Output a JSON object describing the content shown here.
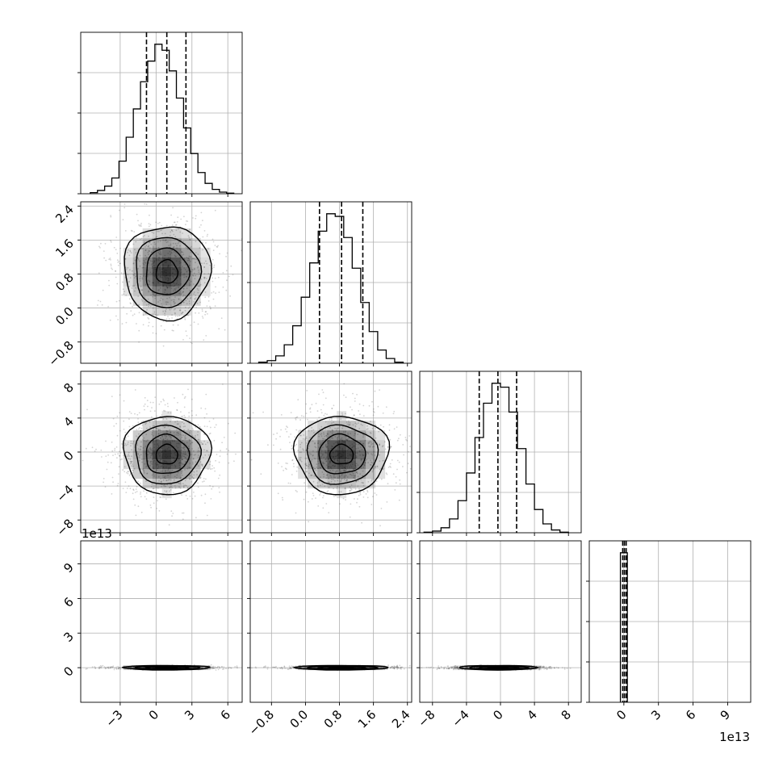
{
  "chart_data": {
    "type": "corner",
    "offset_label_text": "1e13",
    "grid": true,
    "quantile_lines": "dashed",
    "parameters": [
      {
        "id": "p0",
        "xlim": [
          -6.3,
          7.2
        ],
        "ticks": [
          -3,
          0,
          3,
          6
        ],
        "tick_labels": [
          "−3",
          "0",
          "3",
          "6"
        ]
      },
      {
        "id": "p1",
        "xlim": [
          -1.3,
          2.5
        ],
        "ticks": [
          -0.8,
          0.0,
          0.8,
          1.6,
          2.4
        ],
        "tick_labels": [
          "−0.8",
          "0.0",
          "0.8",
          "1.6",
          "2.4"
        ]
      },
      {
        "id": "p2",
        "xlim": [
          -9.5,
          9.5
        ],
        "ticks": [
          -8,
          -4,
          0,
          4,
          8
        ],
        "tick_labels": [
          "−8",
          "−4",
          "0",
          "4",
          "8"
        ]
      },
      {
        "id": "p3",
        "xlim": [
          -3,
          11
        ],
        "ticks": [
          0,
          3,
          6,
          9
        ],
        "tick_labels": [
          "0",
          "3",
          "6",
          "9"
        ],
        "offset": "1e13"
      }
    ],
    "histograms": [
      {
        "param": "p0",
        "quantiles": [
          -0.8,
          0.9,
          2.5
        ],
        "bin_edges": [
          -5.5,
          -4.9,
          -4.3,
          -3.7,
          -3.1,
          -2.5,
          -1.9,
          -1.3,
          -0.7,
          -0.1,
          0.5,
          1.1,
          1.7,
          2.3,
          2.9,
          3.5,
          4.1,
          4.7,
          5.3,
          5.9,
          6.5
        ],
        "counts": [
          2,
          6,
          14,
          29,
          60,
          104,
          156,
          206,
          244,
          275,
          264,
          226,
          176,
          121,
          74,
          39,
          19,
          8,
          3,
          1
        ]
      },
      {
        "param": "p1",
        "quantiles": [
          0.33,
          0.85,
          1.35
        ],
        "bin_edges": [
          -1.1,
          -0.9,
          -0.7,
          -0.5,
          -0.3,
          -0.1,
          0.1,
          0.3,
          0.5,
          0.7,
          0.9,
          1.1,
          1.3,
          1.5,
          1.7,
          1.9,
          2.1,
          2.3
        ],
        "counts": [
          2,
          5,
          14,
          35,
          71,
          125,
          190,
          250,
          283,
          278,
          238,
          180,
          115,
          60,
          25,
          9,
          2
        ]
      },
      {
        "param": "p2",
        "quantiles": [
          -2.5,
          -0.3,
          1.9
        ],
        "bin_edges": [
          -9,
          -8,
          -7,
          -6,
          -5,
          -4,
          -3,
          -2,
          -1,
          0,
          1,
          2,
          3,
          4,
          5,
          6,
          7,
          8
        ],
        "counts": [
          1,
          3,
          9,
          25,
          58,
          108,
          172,
          234,
          270,
          263,
          218,
          152,
          88,
          42,
          16,
          5,
          1
        ]
      },
      {
        "param": "p3",
        "quantiles": [
          -0.1,
          0.05,
          0.2
        ],
        "bin_edges": [
          -0.3,
          0.3
        ],
        "counts": [
          100
        ]
      }
    ],
    "joint_panels": [
      {
        "x": "p0",
        "y": "p1",
        "center": [
          0.9,
          0.85
        ],
        "sigma": [
          1.8,
          0.55
        ],
        "contour_levels": [
          "0.5",
          "1",
          "1.5",
          "2"
        ]
      },
      {
        "x": "p0",
        "y": "p2",
        "center": [
          0.9,
          -0.3
        ],
        "sigma": [
          1.8,
          2.3
        ],
        "contour_levels": [
          "0.5",
          "1",
          "1.5",
          "2"
        ]
      },
      {
        "x": "p1",
        "y": "p2",
        "center": [
          0.85,
          -0.3
        ],
        "sigma": [
          0.55,
          2.3
        ],
        "contour_levels": [
          "0.5",
          "1",
          "1.5",
          "2"
        ]
      },
      {
        "x": "p0",
        "y": "p3",
        "center": [
          0.9,
          0.0
        ],
        "sigma": [
          1.8,
          0.03
        ],
        "contour_levels": [
          "0.5",
          "1",
          "1.5",
          "2"
        ]
      },
      {
        "x": "p1",
        "y": "p3",
        "center": [
          0.85,
          0.0
        ],
        "sigma": [
          0.55,
          0.03
        ],
        "contour_levels": [
          "0.5",
          "1",
          "1.5",
          "2"
        ]
      },
      {
        "x": "p2",
        "y": "p3",
        "center": [
          -0.3,
          0.0
        ],
        "sigma": [
          2.3,
          0.03
        ],
        "contour_levels": [
          "0.5",
          "1",
          "1.5",
          "2"
        ]
      }
    ]
  }
}
